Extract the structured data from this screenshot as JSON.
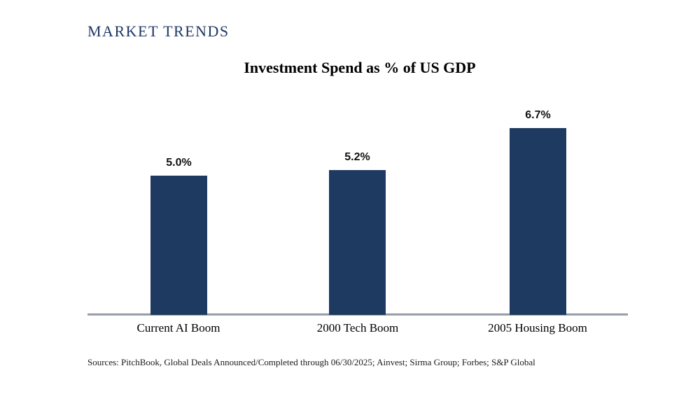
{
  "header": {
    "title": "MARKET TRENDS",
    "color": "#1f3864"
  },
  "chart_data": {
    "type": "bar",
    "title": "Investment Spend as % of US GDP",
    "categories": [
      "Current AI Boom",
      "2000 Tech Boom",
      "2005 Housing Boom"
    ],
    "values": [
      5.0,
      5.2,
      6.7
    ],
    "value_labels": [
      "5.0%",
      "5.2%",
      "6.7%"
    ],
    "bar_color": "#1f3a60",
    "xlabel": "",
    "ylabel": "",
    "ylim": [
      0,
      7.5
    ],
    "grid": false,
    "legend": false,
    "axis_line_color": "#a3a9b4"
  },
  "footer": {
    "sources": "Sources: PitchBook, Global Deals Announced/Completed through 06/30/2025; Ainvest; Sirma Group; Forbes; S&P Global"
  }
}
